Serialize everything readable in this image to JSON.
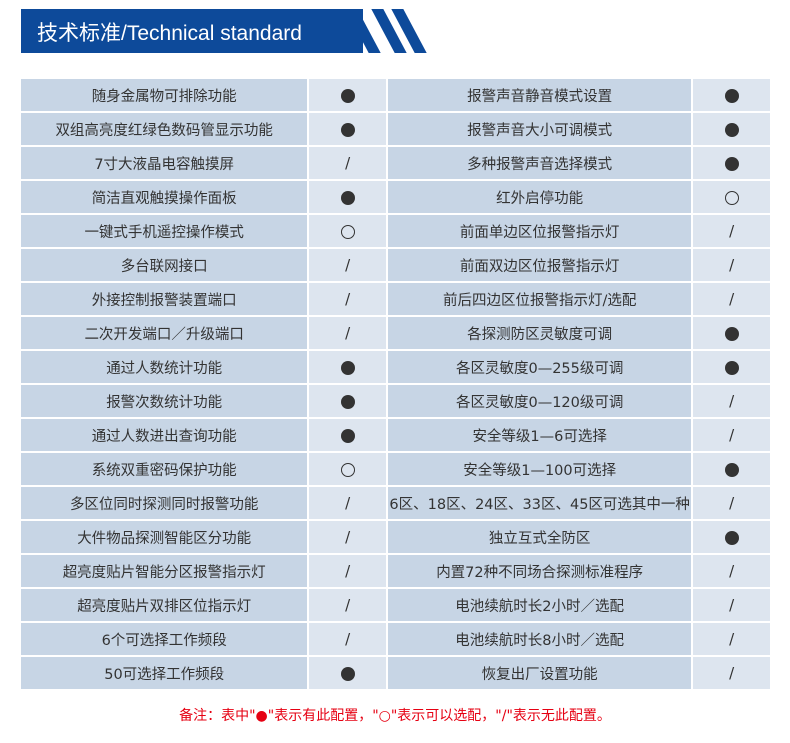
{
  "header": {
    "title": "技术标准/Technical standard"
  },
  "rows": [
    {
      "l": "随身金属物可排除功能",
      "lv": "●",
      "r": "报警声音静音模式设置",
      "rv": "●"
    },
    {
      "l": "双组高亮度红绿色数码管显示功能",
      "lv": "●",
      "r": "报警声音大小可调模式",
      "rv": "●"
    },
    {
      "l": "7寸大液晶电容触摸屏",
      "lv": "/",
      "r": "多种报警声音选择模式",
      "rv": "●"
    },
    {
      "l": "简洁直观触摸操作面板",
      "lv": "●",
      "r": "红外启停功能",
      "rv": "○"
    },
    {
      "l": "一键式手机遥控操作模式",
      "lv": "○",
      "r": "前面单边区位报警指示灯",
      "rv": "/"
    },
    {
      "l": "多台联网接口",
      "lv": "/",
      "r": "前面双边区位报警指示灯",
      "rv": "/"
    },
    {
      "l": "外接控制报警装置端口",
      "lv": "/",
      "r": "前后四边区位报警指示灯/选配",
      "rv": "/"
    },
    {
      "l": "二次开发端口／升级端口",
      "lv": "/",
      "r": "各探测防区灵敏度可调",
      "rv": "●"
    },
    {
      "l": "通过人数统计功能",
      "lv": "●",
      "r": "各区灵敏度0—255级可调",
      "rv": "●"
    },
    {
      "l": "报警次数统计功能",
      "lv": "●",
      "r": "各区灵敏度0—120级可调",
      "rv": "/"
    },
    {
      "l": "通过人数进出查询功能",
      "lv": "●",
      "r": "安全等级1—6可选择",
      "rv": "/"
    },
    {
      "l": "系统双重密码保护功能",
      "lv": "○",
      "r": "安全等级1—100可选择",
      "rv": "●"
    },
    {
      "l": "多区位同时探测同时报警功能",
      "lv": "/",
      "r": "6区、18区、24区、33区、45区可选其中一种",
      "rv": "/"
    },
    {
      "l": "大件物品探测智能区分功能",
      "lv": "/",
      "r": "独立互式全防区",
      "rv": "●"
    },
    {
      "l": "超亮度贴片智能分区报警指示灯",
      "lv": "/",
      "r": "内置72种不同场合探测标准程序",
      "rv": "/"
    },
    {
      "l": "超亮度贴片双排区位指示灯",
      "lv": "/",
      "r": "电池续航时长2小时／选配",
      "rv": "/"
    },
    {
      "l": "6个可选择工作频段",
      "lv": "/",
      "r": "电池续航时长8小时／选配",
      "rv": "/"
    },
    {
      "l": "50可选择工作频段",
      "lv": "●",
      "r": "恢复出厂设置功能",
      "rv": "/"
    }
  ],
  "note": "备注：表中\"●\"表示有此配置，\"○\"表示可以选配，\"/\"表示无此配置。"
}
